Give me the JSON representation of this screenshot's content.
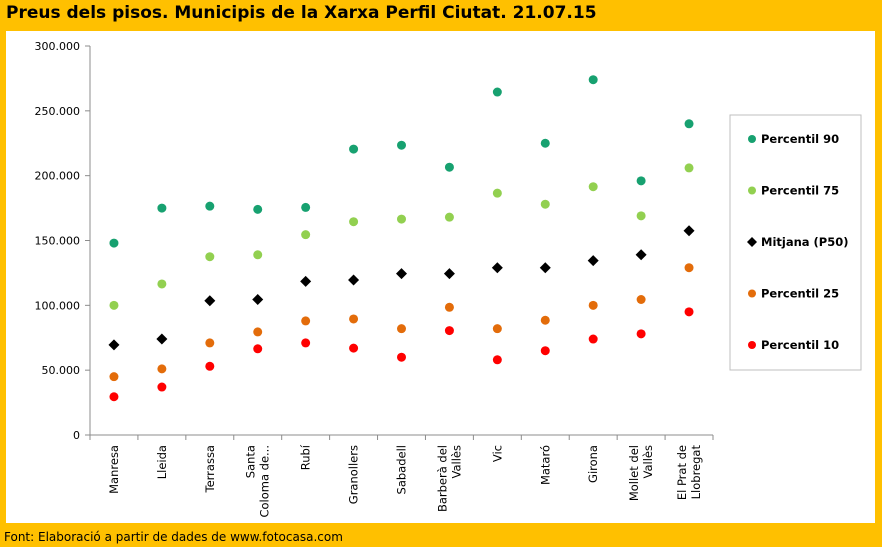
{
  "title": "Preus dels pisos. Municipis de la Xarxa Perfil Ciutat. 21.07.15",
  "footer": "Font: Elaboració a partir de dades de www.fotocasa.com",
  "chart_data": {
    "type": "scatter",
    "title": "Preus dels pisos. Municipis de la Xarxa Perfil Ciutat. 21.07.15",
    "categories": [
      [
        "Manresa"
      ],
      [
        "Lleida"
      ],
      [
        "Terrassa"
      ],
      [
        "Santa",
        "Coloma de..."
      ],
      [
        "Rubí"
      ],
      [
        "Granollers"
      ],
      [
        "Sabadell"
      ],
      [
        "Barberà del",
        "Vallès"
      ],
      [
        "Vic"
      ],
      [
        "Mataró"
      ],
      [
        "Girona"
      ],
      [
        "Mollet del",
        "Vallès"
      ],
      [
        "El Prat de",
        "Llobregat"
      ]
    ],
    "ylim": [
      0,
      300000
    ],
    "y_ticks": [
      0,
      50000,
      100000,
      150000,
      200000,
      250000,
      300000
    ],
    "y_tick_labels": [
      "0",
      "50.000",
      "100.000",
      "150.000",
      "200.000",
      "250.000",
      "300.000"
    ],
    "grid": false,
    "legend_position": "right",
    "series": [
      {
        "name": "Percentil 90",
        "color": "#17a170",
        "marker": "circle",
        "values": [
          148000,
          175000,
          176500,
          174000,
          175500,
          220500,
          223500,
          206500,
          264500,
          225000,
          274000,
          196000,
          240000
        ]
      },
      {
        "name": "Percentil 75",
        "color": "#92d050",
        "marker": "circle",
        "values": [
          100000,
          116500,
          137500,
          139000,
          154500,
          164500,
          166500,
          168000,
          186500,
          178000,
          191500,
          169000,
          206000
        ]
      },
      {
        "name": "Mitjana (P50)",
        "color": "#000000",
        "marker": "diamond",
        "values": [
          69500,
          74000,
          103500,
          104500,
          118500,
          119500,
          124500,
          124500,
          129000,
          129000,
          134500,
          139000,
          157500
        ]
      },
      {
        "name": "Percentil 25",
        "color": "#e36c0a",
        "marker": "circle",
        "values": [
          45000,
          51000,
          71000,
          79500,
          88000,
          89500,
          82000,
          98500,
          82000,
          88500,
          100000,
          104500,
          129000
        ]
      },
      {
        "name": "Percentil 10",
        "color": "#ff0000",
        "marker": "circle",
        "values": [
          29500,
          37000,
          53000,
          66500,
          71000,
          67000,
          60000,
          80500,
          58000,
          65000,
          74000,
          78000,
          95000
        ]
      }
    ]
  }
}
